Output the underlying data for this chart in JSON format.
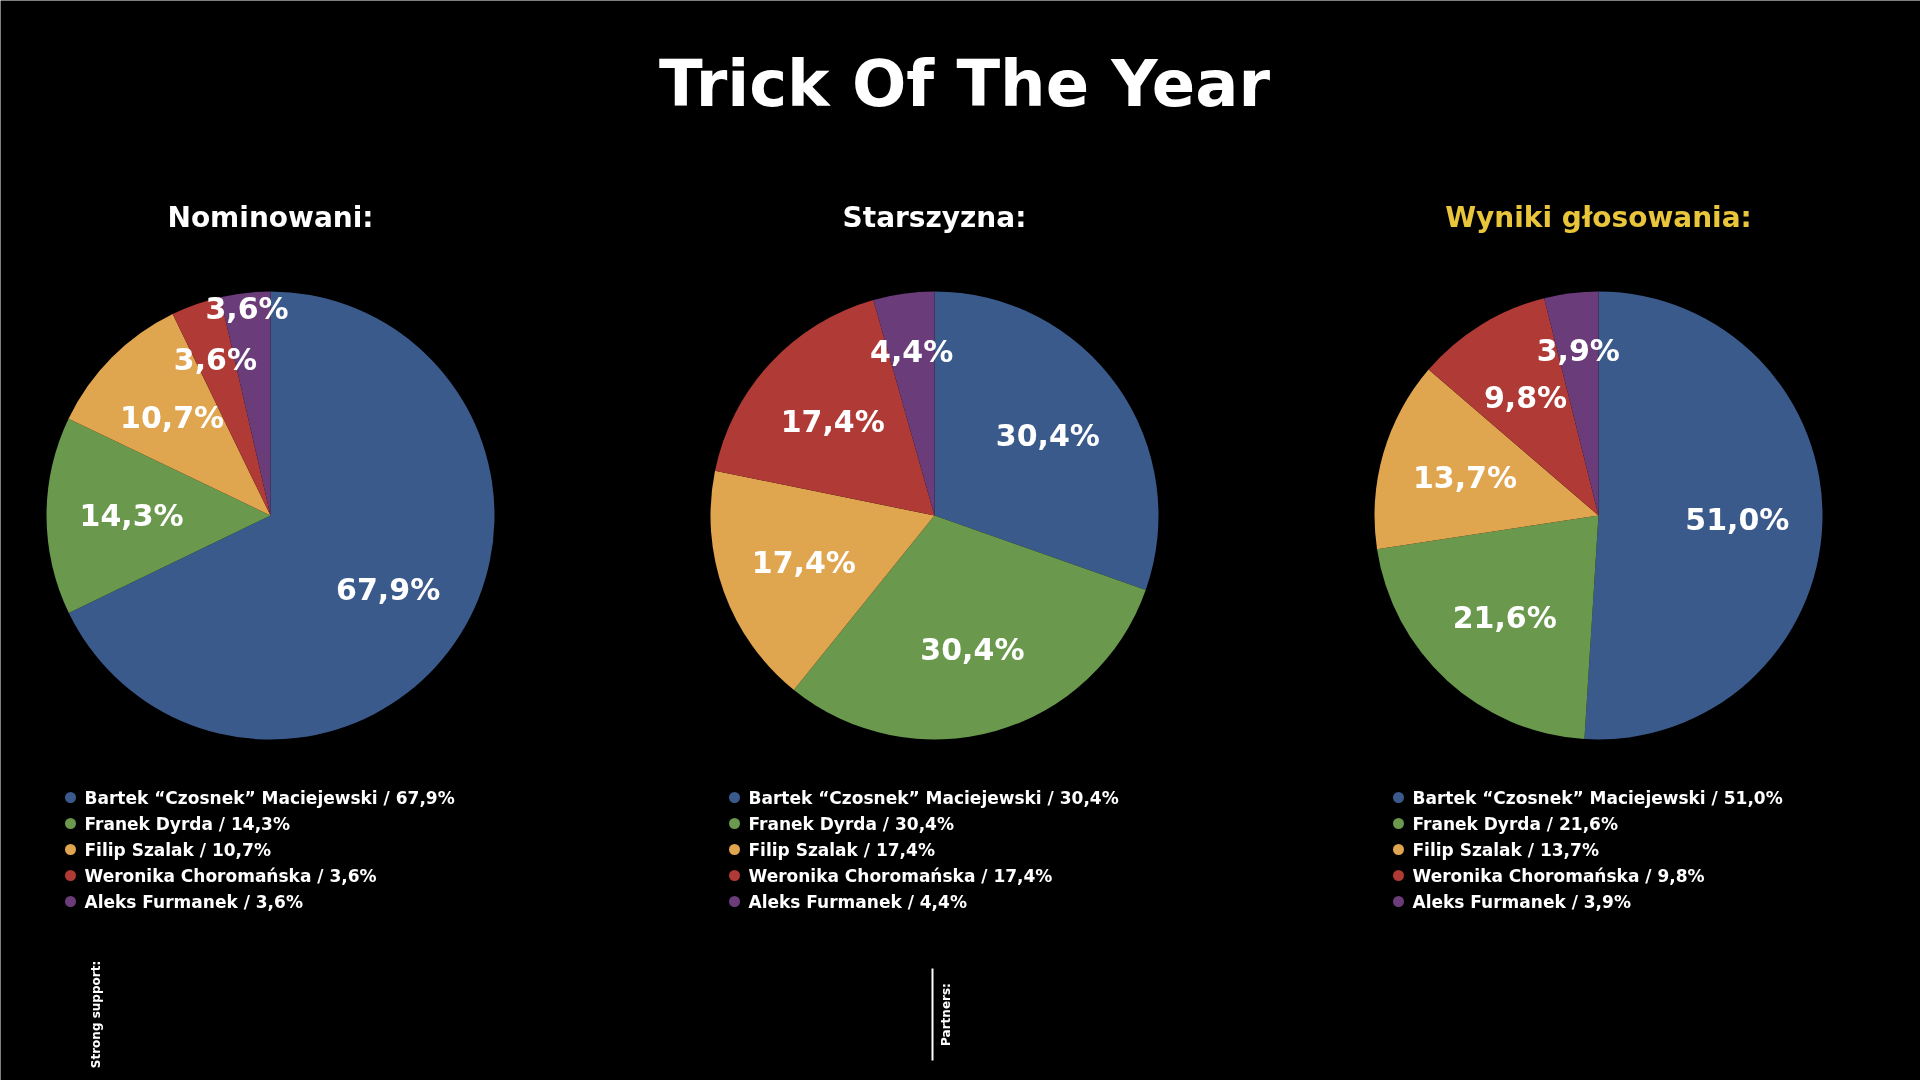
{
  "chart_data": [
    {
      "type": "pie",
      "subtitle": "Nominowani:",
      "categories": [
        "Bartek “Czosnek” Maciejewski / 67,9%",
        "Franek Dyrda / 14,3%",
        "Filip Szalak / 10,7%",
        "Weronika Choromańska / 3,6%",
        "Aleks Furmanek / 3,6%"
      ],
      "values": [
        67.9,
        14.3,
        10.7,
        3.6,
        3.6
      ],
      "value_labels": [
        "67,9%",
        "14,3%",
        "10,7%",
        "3,6%",
        "3,6%"
      ],
      "colors": [
        "#3a5a8c",
        "#6a994e",
        "#e0a54f",
        "#b03a35",
        "#6a3d7a"
      ],
      "legend": "bottom",
      "annotations": [
        "Strong support:",
        "Partners:"
      ]
    },
    {
      "type": "pie",
      "title": "Trick Of The Year",
      "subtitle": "Starszyzna:",
      "categories": [
        "Bartek “Czosnek” Maciejewski / 30,4%",
        "Franek Dyrda / 30,4%",
        "Filip Szalak / 17,4%",
        "Weronika Choromańska / 17,4%",
        "Aleks Furmanek / 4,4%"
      ],
      "values": [
        30.4,
        30.4,
        17.4,
        17.4,
        4.4
      ],
      "value_labels": [
        "30,4%",
        "30,4%",
        "17,4%",
        "17,4%",
        "4,4%"
      ],
      "colors": [
        "#3a5a8c",
        "#6a994e",
        "#e0a54f",
        "#b03a35",
        "#6a3d7a"
      ],
      "legend": "bottom"
    },
    {
      "type": "pie",
      "subtitle": "Wyniki głosowania:",
      "categories": [
        "Bartek “Czosnek” Maciejewski / 51,0%",
        "Franek Dyrda / 21,6%",
        "Filip Szalak / 13,7%",
        "Weronika Choromańska / 9,8%",
        "Aleks Furmanek / 3,9%"
      ],
      "values": [
        51.0,
        21.6,
        13.7,
        9.8,
        3.9
      ],
      "value_labels": [
        "51,0%",
        "21,6%",
        "13,7%",
        "9,8%",
        "3,9%"
      ],
      "colors": [
        "#3a5a8c",
        "#6a994e",
        "#e0a54f",
        "#b03a35",
        "#6a3d7a"
      ],
      "legend": "bottom"
    }
  ]
}
